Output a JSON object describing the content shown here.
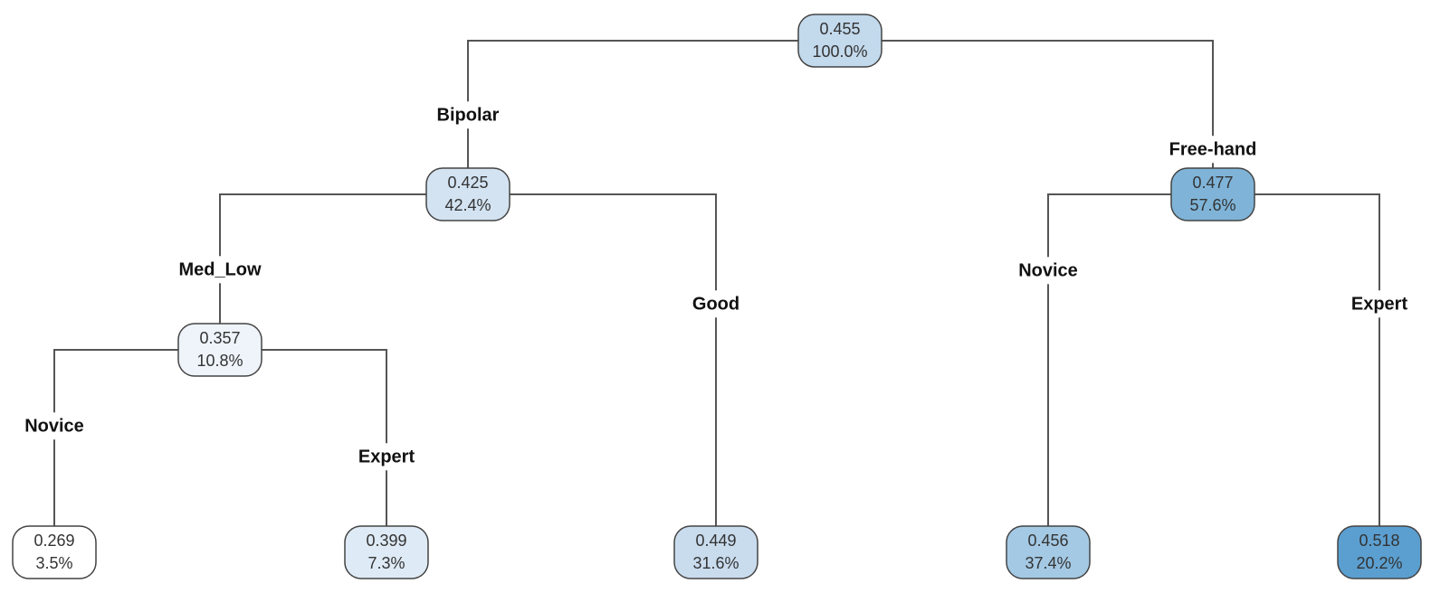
{
  "nodes": [
    {
      "value": "0.455",
      "percent": "100.0%",
      "fill": "#c3d9ec"
    },
    {
      "value": "0.425",
      "percent": "42.4%",
      "fill": "#d3e3f2"
    },
    {
      "value": "0.477",
      "percent": "57.6%",
      "fill": "#7fb4d8"
    },
    {
      "value": "0.357",
      "percent": "10.8%",
      "fill": "#eef4fa"
    },
    {
      "value": "0.269",
      "percent": "3.5%",
      "fill": "#ffffff"
    },
    {
      "value": "0.399",
      "percent": "7.3%",
      "fill": "#deeaf5"
    },
    {
      "value": "0.449",
      "percent": "31.6%",
      "fill": "#c9dcee"
    },
    {
      "value": "0.456",
      "percent": "37.4%",
      "fill": "#a4c9e4"
    },
    {
      "value": "0.518",
      "percent": "20.2%",
      "fill": "#5b9fd0"
    }
  ],
  "edges": [
    {
      "from": 0,
      "to": 1,
      "label": "Bipolar"
    },
    {
      "from": 0,
      "to": 2,
      "label": "Free-hand"
    },
    {
      "from": 1,
      "to": 3,
      "label": "Med_Low"
    },
    {
      "from": 1,
      "to": 6,
      "label": "Good"
    },
    {
      "from": 3,
      "to": 4,
      "label": "Novice"
    },
    {
      "from": 3,
      "to": 5,
      "label": "Expert"
    },
    {
      "from": 2,
      "to": 7,
      "label": "Novice"
    },
    {
      "from": 2,
      "to": 8,
      "label": "Expert"
    }
  ]
}
